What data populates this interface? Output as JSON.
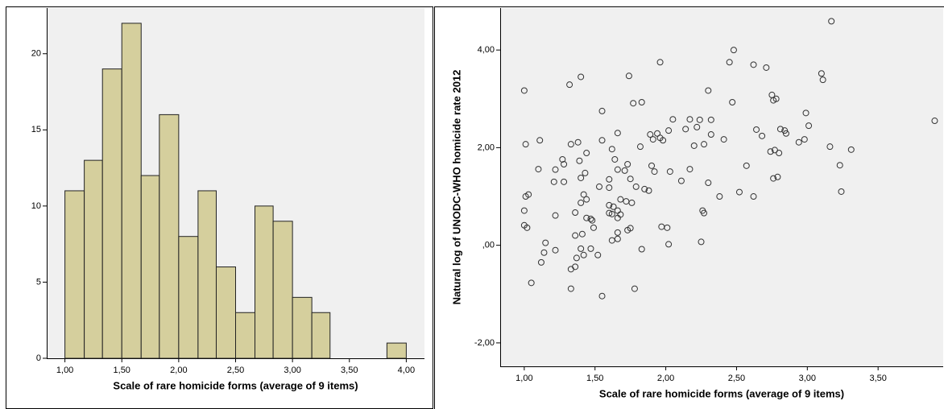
{
  "chart_data": [
    {
      "type": "histogram",
      "x_label": "Scale of rare homicide forms (average of 9 items)",
      "bins": [
        1.0,
        1.17,
        1.33,
        1.5,
        1.67,
        1.83,
        2.0,
        2.17,
        2.33,
        2.5,
        2.67,
        2.83,
        3.0,
        3.17,
        3.33,
        3.5,
        3.67,
        3.83,
        4.0
      ],
      "values": [
        11,
        13,
        19,
        22,
        12,
        16,
        8,
        11,
        6,
        3,
        10,
        9,
        4,
        3,
        0,
        0,
        0,
        1
      ],
      "color": "#d5cf9d",
      "xlim": [
        0.84,
        4.16
      ],
      "xticks": [
        {
          "value": 1,
          "label": "1,00"
        },
        {
          "value": 1.5,
          "label": "1,50"
        },
        {
          "value": 2,
          "label": "2,00"
        },
        {
          "value": 2.5,
          "label": "2,50"
        },
        {
          "value": 3,
          "label": "3,00"
        },
        {
          "value": 3.5,
          "label": "3,50"
        },
        {
          "value": 4,
          "label": "4,00"
        }
      ],
      "ylim": [
        0,
        23
      ],
      "yticks": [
        0,
        5,
        10,
        15,
        20
      ]
    },
    {
      "type": "scatter",
      "x_label": "Scale of rare homicide forms (average of 9 items)",
      "y_label": "Natural log of UNODC-WHO homicide rate 2012",
      "x": [
        3.17,
        2.48,
        2.45,
        1.96,
        2.62,
        2.71,
        1.0,
        1.4,
        1.32,
        1.74,
        3.1,
        3.11,
        2.3,
        2.75,
        2.78,
        2.76,
        2.47,
        1.77,
        1.83,
        1.55,
        2.99,
        2.05,
        2.17,
        2.32,
        2.24,
        1.66,
        2.02,
        2.14,
        2.22,
        3.01,
        2.64,
        2.81,
        2.84,
        2.85,
        1.89,
        1.94,
        1.91,
        1.96,
        1.98,
        2.32,
        1.01,
        1.11,
        1.33,
        1.38,
        1.55,
        2.2,
        2.27,
        2.41,
        2.68,
        2.98,
        2.94,
        3.16,
        3.31,
        1.82,
        1.62,
        2.74,
        2.77,
        2.8,
        3.9,
        1.44,
        1.39,
        1.27,
        1.28,
        1.64,
        1.73,
        1.9,
        1.92,
        2.03,
        2.57,
        3.23,
        1.1,
        1.22,
        1.66,
        1.71,
        2.17,
        1.43,
        2.79,
        2.76,
        1.6,
        1.75,
        1.4,
        1.28,
        1.21,
        2.11,
        2.3,
        1.53,
        1.6,
        1.79,
        1.85,
        1.88,
        3.24,
        2.52,
        2.62,
        1.03,
        1.01,
        1.42,
        1.44,
        1.68,
        2.38,
        1.72,
        1.76,
        1.4,
        1.6,
        1.63,
        1.66,
        1.36,
        1.0,
        1.22,
        2.26,
        2.27,
        1.6,
        1.62,
        1.68,
        1.66,
        1.44,
        1.47,
        1.48,
        1.97,
        2.01,
        1.75,
        1.0,
        1.02,
        1.49,
        1.66,
        1.73,
        1.36,
        1.41,
        1.66,
        1.62,
        1.15,
        2.25,
        2.02,
        1.47,
        1.4,
        1.22,
        1.42,
        1.14,
        1.83,
        1.52,
        1.37,
        1.12,
        1.36,
        1.33,
        1.05,
        1.33,
        1.78,
        1.55
      ],
      "y": [
        4.59,
        4.0,
        3.75,
        3.75,
        3.7,
        3.64,
        3.17,
        3.45,
        3.29,
        3.47,
        3.52,
        3.39,
        3.17,
        3.08,
        3.0,
        2.97,
        2.93,
        2.91,
        2.93,
        2.75,
        2.71,
        2.58,
        2.58,
        2.57,
        2.57,
        2.3,
        2.35,
        2.38,
        2.42,
        2.45,
        2.37,
        2.38,
        2.35,
        2.29,
        2.27,
        2.29,
        2.17,
        2.2,
        2.15,
        2.27,
        2.07,
        2.15,
        2.07,
        2.11,
        2.15,
        2.04,
        2.07,
        2.17,
        2.24,
        2.17,
        2.11,
        2.02,
        1.96,
        2.02,
        1.97,
        1.92,
        1.95,
        1.89,
        2.55,
        1.89,
        1.73,
        1.76,
        1.66,
        1.76,
        1.66,
        1.63,
        1.51,
        1.51,
        1.63,
        1.64,
        1.56,
        1.55,
        1.55,
        1.53,
        1.56,
        1.48,
        1.4,
        1.37,
        1.35,
        1.36,
        1.38,
        1.3,
        1.3,
        1.32,
        1.28,
        1.2,
        1.18,
        1.2,
        1.15,
        1.12,
        1.1,
        1.09,
        1.0,
        1.04,
        1.0,
        1.04,
        0.94,
        0.94,
        1.0,
        0.9,
        0.87,
        0.87,
        0.82,
        0.79,
        0.71,
        0.67,
        0.71,
        0.61,
        0.71,
        0.66,
        0.66,
        0.64,
        0.63,
        0.56,
        0.56,
        0.54,
        0.51,
        0.38,
        0.36,
        0.35,
        0.41,
        0.36,
        0.36,
        0.26,
        0.31,
        0.2,
        0.23,
        0.13,
        0.1,
        0.05,
        0.07,
        0.02,
        -0.07,
        -0.07,
        -0.1,
        -0.2,
        -0.15,
        -0.08,
        -0.2,
        -0.26,
        -0.35,
        -0.44,
        -0.49,
        -0.77,
        -0.89,
        -0.89,
        -1.04
      ],
      "color": "#333333",
      "xlim": [
        0.83,
        3.96
      ],
      "xticks": [
        {
          "value": 1,
          "label": "1,00"
        },
        {
          "value": 1.5,
          "label": "1,50"
        },
        {
          "value": 2,
          "label": "2,00"
        },
        {
          "value": 2.5,
          "label": "2,50"
        },
        {
          "value": 3,
          "label": "3,00"
        },
        {
          "value": 3.5,
          "label": "3,50"
        }
      ],
      "ylim": [
        -2.48,
        4.86
      ],
      "yticks": [
        {
          "value": -2,
          "label": "-2,00"
        },
        {
          "value": 0,
          "label": ",00"
        },
        {
          "value": 2,
          "label": "2,00"
        },
        {
          "value": 4,
          "label": "4,00"
        }
      ]
    }
  ]
}
